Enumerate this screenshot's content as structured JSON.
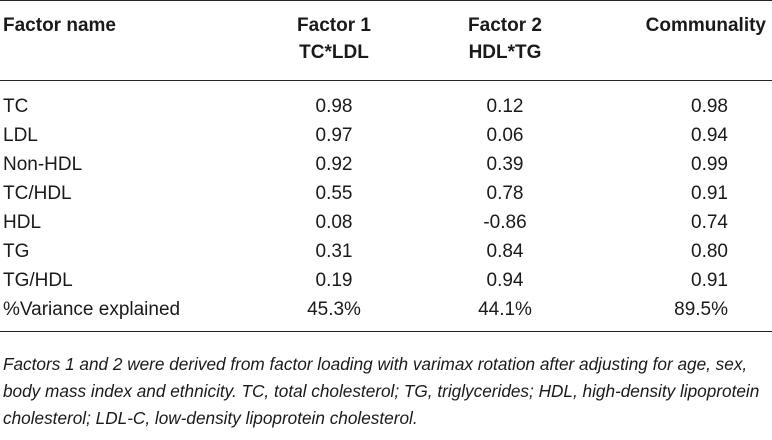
{
  "table": {
    "headers": {
      "name": "Factor name",
      "factor1_line1": "Factor 1",
      "factor1_line2": "TC*LDL",
      "factor2_line1": "Factor 2",
      "factor2_line2": "HDL*TG",
      "communality": "Communality"
    },
    "rows": [
      {
        "name": "TC",
        "f1": "0.98",
        "f2": "0.12",
        "comm": "0.98"
      },
      {
        "name": "LDL",
        "f1": "0.97",
        "f2": "0.06",
        "comm": "0.94"
      },
      {
        "name": "Non-HDL",
        "f1": "0.92",
        "f2": "0.39",
        "comm": "0.99"
      },
      {
        "name": "TC/HDL",
        "f1": "0.55",
        "f2": "0.78",
        "comm": "0.91"
      },
      {
        "name": "HDL",
        "f1": "0.08",
        "f2": "-0.86",
        "comm": "0.74"
      },
      {
        "name": "TG",
        "f1": "0.31",
        "f2": "0.84",
        "comm": "0.80"
      },
      {
        "name": "TG/HDL",
        "f1": "0.19",
        "f2": "0.94",
        "comm": "0.91"
      },
      {
        "name": "%Variance explained",
        "f1": "45.3%",
        "f2": "44.1%",
        "comm": "89.5%"
      }
    ]
  },
  "footnote": "Factors 1 and 2 were derived from factor loading with varimax rotation after adjusting for age, sex, body mass index and ethnicity. TC, total cholesterol; TG, triglycerides; HDL, high-density lipoprotein cholesterol; LDL-C, low-density lipoprotein cholesterol."
}
